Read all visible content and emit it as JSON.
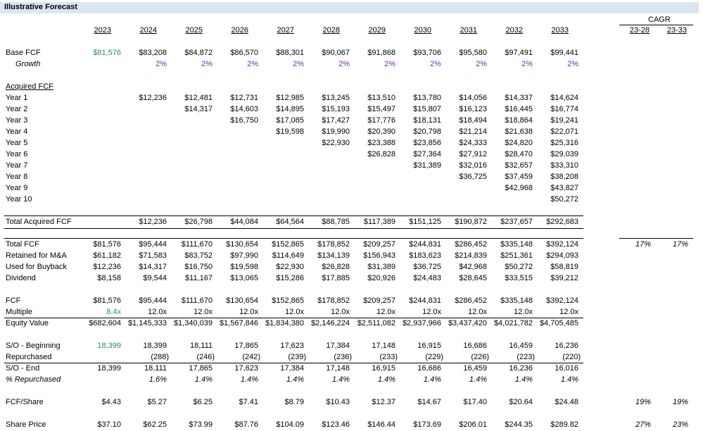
{
  "colors": {
    "header_fill": "#dce6f1",
    "input_green": "#2e8b57",
    "growth_purple": "#7030a0"
  },
  "title": "Illustrative Forecast",
  "cagr_header": "CAGR",
  "cagr_cols": [
    "23-28",
    "23-33"
  ],
  "years": [
    "2023",
    "2024",
    "2025",
    "2026",
    "2027",
    "2028",
    "2029",
    "2030",
    "2031",
    "2032",
    "2033"
  ],
  "rows": {
    "base_fcf": {
      "label": "Base FCF",
      "values": [
        "$81,576",
        "$83,208",
        "$84,872",
        "$86,570",
        "$88,301",
        "$90,067",
        "$91,868",
        "$93,706",
        "$95,580",
        "$97,491",
        "$99,441"
      ]
    },
    "growth": {
      "label": "Growth",
      "values": [
        "",
        "2%",
        "2%",
        "2%",
        "2%",
        "2%",
        "2%",
        "2%",
        "2%",
        "2%",
        "2%"
      ]
    },
    "acquired_header": "Acquired FCF",
    "acquired": [
      {
        "label": "Year 1",
        "values": [
          "",
          "$12,236",
          "$12,481",
          "$12,731",
          "$12,985",
          "$13,245",
          "$13,510",
          "$13,780",
          "$14,056",
          "$14,337",
          "$14,624"
        ]
      },
      {
        "label": "Year 2",
        "values": [
          "",
          "",
          "$14,317",
          "$14,603",
          "$14,895",
          "$15,193",
          "$15,497",
          "$15,807",
          "$16,123",
          "$16,445",
          "$16,774"
        ]
      },
      {
        "label": "Year 3",
        "values": [
          "",
          "",
          "",
          "$16,750",
          "$17,085",
          "$17,427",
          "$17,776",
          "$18,131",
          "$18,494",
          "$18,864",
          "$19,241"
        ]
      },
      {
        "label": "Year 4",
        "values": [
          "",
          "",
          "",
          "",
          "$19,598",
          "$19,990",
          "$20,390",
          "$20,798",
          "$21,214",
          "$21,638",
          "$22,071"
        ]
      },
      {
        "label": "Year 5",
        "values": [
          "",
          "",
          "",
          "",
          "",
          "$22,930",
          "$23,388",
          "$23,856",
          "$24,333",
          "$24,820",
          "$25,316"
        ]
      },
      {
        "label": "Year 6",
        "values": [
          "",
          "",
          "",
          "",
          "",
          "",
          "$26,828",
          "$27,364",
          "$27,912",
          "$28,470",
          "$29,039"
        ]
      },
      {
        "label": "Year 7",
        "values": [
          "",
          "",
          "",
          "",
          "",
          "",
          "",
          "$31,389",
          "$32,016",
          "$32,657",
          "$33,310"
        ]
      },
      {
        "label": "Year 8",
        "values": [
          "",
          "",
          "",
          "",
          "",
          "",
          "",
          "",
          "$36,725",
          "$37,459",
          "$38,208"
        ]
      },
      {
        "label": "Year 9",
        "values": [
          "",
          "",
          "",
          "",
          "",
          "",
          "",
          "",
          "",
          "$42,968",
          "$43,827"
        ]
      },
      {
        "label": "Year 10",
        "values": [
          "",
          "",
          "",
          "",
          "",
          "",
          "",
          "",
          "",
          "",
          "$50,272"
        ]
      }
    ],
    "total_acquired": {
      "label": "Total Acquired FCF",
      "values": [
        "",
        "$12,236",
        "$26,798",
        "$44,084",
        "$64,564",
        "$88,785",
        "$117,389",
        "$151,125",
        "$190,872",
        "$237,657",
        "$292,683"
      ]
    },
    "total_fcf": {
      "label": "Total FCF",
      "values": [
        "$81,576",
        "$95,444",
        "$111,670",
        "$130,654",
        "$152,865",
        "$178,852",
        "$209,257",
        "$244,831",
        "$286,452",
        "$335,148",
        "$392,124"
      ],
      "cagr": [
        "17%",
        "17%"
      ]
    },
    "retained": {
      "label": "Retained for M&A",
      "values": [
        "$61,182",
        "$71,583",
        "$83,752",
        "$97,990",
        "$114,649",
        "$134,139",
        "$156,943",
        "$183,623",
        "$214,839",
        "$251,361",
        "$294,093"
      ]
    },
    "buyback": {
      "label": "Used for Buyback",
      "values": [
        "$12,236",
        "$14,317",
        "$16,750",
        "$19,598",
        "$22,930",
        "$26,828",
        "$31,389",
        "$36,725",
        "$42,968",
        "$50,272",
        "$58,819"
      ]
    },
    "dividend": {
      "label": "Dividend",
      "values": [
        "$8,158",
        "$9,544",
        "$11,167",
        "$13,065",
        "$15,286",
        "$17,885",
        "$20,926",
        "$24,483",
        "$28,645",
        "$33,515",
        "$39,212"
      ]
    },
    "fcf": {
      "label": "FCF",
      "values": [
        "$81,576",
        "$95,444",
        "$111,670",
        "$130,654",
        "$152,865",
        "$178,852",
        "$209,257",
        "$244,831",
        "$286,452",
        "$335,148",
        "$392,124"
      ]
    },
    "multiple": {
      "label": "Multiple",
      "values": [
        "8.4x",
        "12.0x",
        "12.0x",
        "12.0x",
        "12.0x",
        "12.0x",
        "12.0x",
        "12.0x",
        "12.0x",
        "12.0x",
        "12.0x"
      ]
    },
    "equity": {
      "label": "Equity Value",
      "values": [
        "$682,604",
        "$1,145,333",
        "$1,340,039",
        "$1,567,846",
        "$1,834,380",
        "$2,146,224",
        "$2,511,082",
        "$2,937,966",
        "$3,437,420",
        "$4,021,782",
        "$4,705,485"
      ]
    },
    "so_begin": {
      "label": "S/O - Beginning",
      "values": [
        "18,399",
        "18,399",
        "18,111",
        "17,865",
        "17,623",
        "17,384",
        "17,148",
        "16,915",
        "16,686",
        "16,459",
        "16,236"
      ]
    },
    "repurchased": {
      "label": "Repurchased",
      "values": [
        "",
        "(288)",
        "(246)",
        "(242)",
        "(239)",
        "(236)",
        "(233)",
        "(229)",
        "(226)",
        "(223)",
        "(220)"
      ]
    },
    "so_end": {
      "label": "S/O - End",
      "values": [
        "18,399",
        "18,111",
        "17,865",
        "17,623",
        "17,384",
        "17,148",
        "16,915",
        "16,686",
        "16,459",
        "16,236",
        "16,016"
      ]
    },
    "pct_repurchased": {
      "label": "% Repurchased",
      "values": [
        "",
        "1.6%",
        "1.4%",
        "1.4%",
        "1.4%",
        "1.4%",
        "1.4%",
        "1.4%",
        "1.4%",
        "1.4%",
        "1.4%"
      ]
    },
    "fcf_share": {
      "label": "FCF/Share",
      "values": [
        "$4.43",
        "$5.27",
        "$6.25",
        "$7.41",
        "$8.79",
        "$10.43",
        "$12.37",
        "$14.67",
        "$17.40",
        "$20.64",
        "$24.48"
      ],
      "cagr": [
        "19%",
        "19%"
      ]
    },
    "share_price": {
      "label": "Share Price",
      "values": [
        "$37.10",
        "$62.25",
        "$73.99",
        "$87.76",
        "$104.09",
        "$123.46",
        "$146.44",
        "$173.69",
        "$206.01",
        "$244.35",
        "$289.82"
      ],
      "cagr": [
        "27%",
        "23%"
      ]
    }
  }
}
